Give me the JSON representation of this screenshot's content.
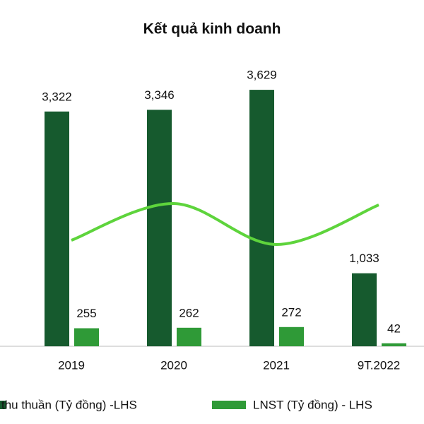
{
  "chart_data": {
    "type": "bar",
    "title": "Kết quả kinh doanh",
    "categories": [
      "2019",
      "2020",
      "2021",
      "9T.2022"
    ],
    "series": [
      {
        "name": "thu thuần (Tỷ đồng) -LHS",
        "color": "#165a2e",
        "values": [
          3322,
          3346,
          3629,
          1033
        ],
        "value_labels": [
          "3,322",
          "3,346",
          "3,629",
          "1,033"
        ]
      },
      {
        "name": "LNST (Tỷ đồng) - LHS",
        "color": "#2f9a37",
        "values": [
          255,
          262,
          272,
          42
        ]
      },
      {
        "type": "line",
        "axis": "y2",
        "color": "#5ed43c",
        "values": [
          3.75,
          5.05,
          3.6,
          5.0
        ]
      }
    ],
    "ylim": [
      0,
      4000
    ],
    "y2lim": [
      0,
      10
    ]
  }
}
